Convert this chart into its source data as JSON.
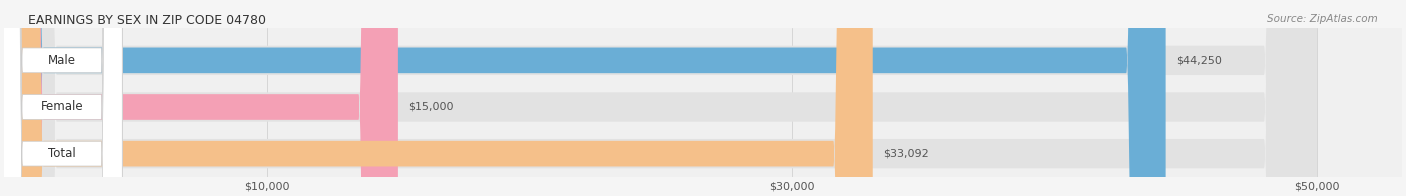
{
  "title": "EARNINGS BY SEX IN ZIP CODE 04780",
  "source": "Source: ZipAtlas.com",
  "categories": [
    "Male",
    "Female",
    "Total"
  ],
  "values": [
    44250,
    15000,
    33092
  ],
  "bar_colors": [
    "#6aaed6",
    "#f4a0b5",
    "#f5c08a"
  ],
  "bar_labels": [
    "$44,250",
    "$15,000",
    "$33,092"
  ],
  "xmin": 0,
  "xmax": 50000,
  "xticks": [
    10000,
    30000,
    50000
  ],
  "xtick_labels": [
    "$10,000",
    "$30,000",
    "$50,000"
  ],
  "background_color": "#f0f0f0",
  "bar_bg_color": "#e8e8e8",
  "title_fontsize": 9,
  "label_fontsize": 7.5,
  "bar_height": 0.55,
  "fig_width": 14.06,
  "fig_height": 1.96
}
